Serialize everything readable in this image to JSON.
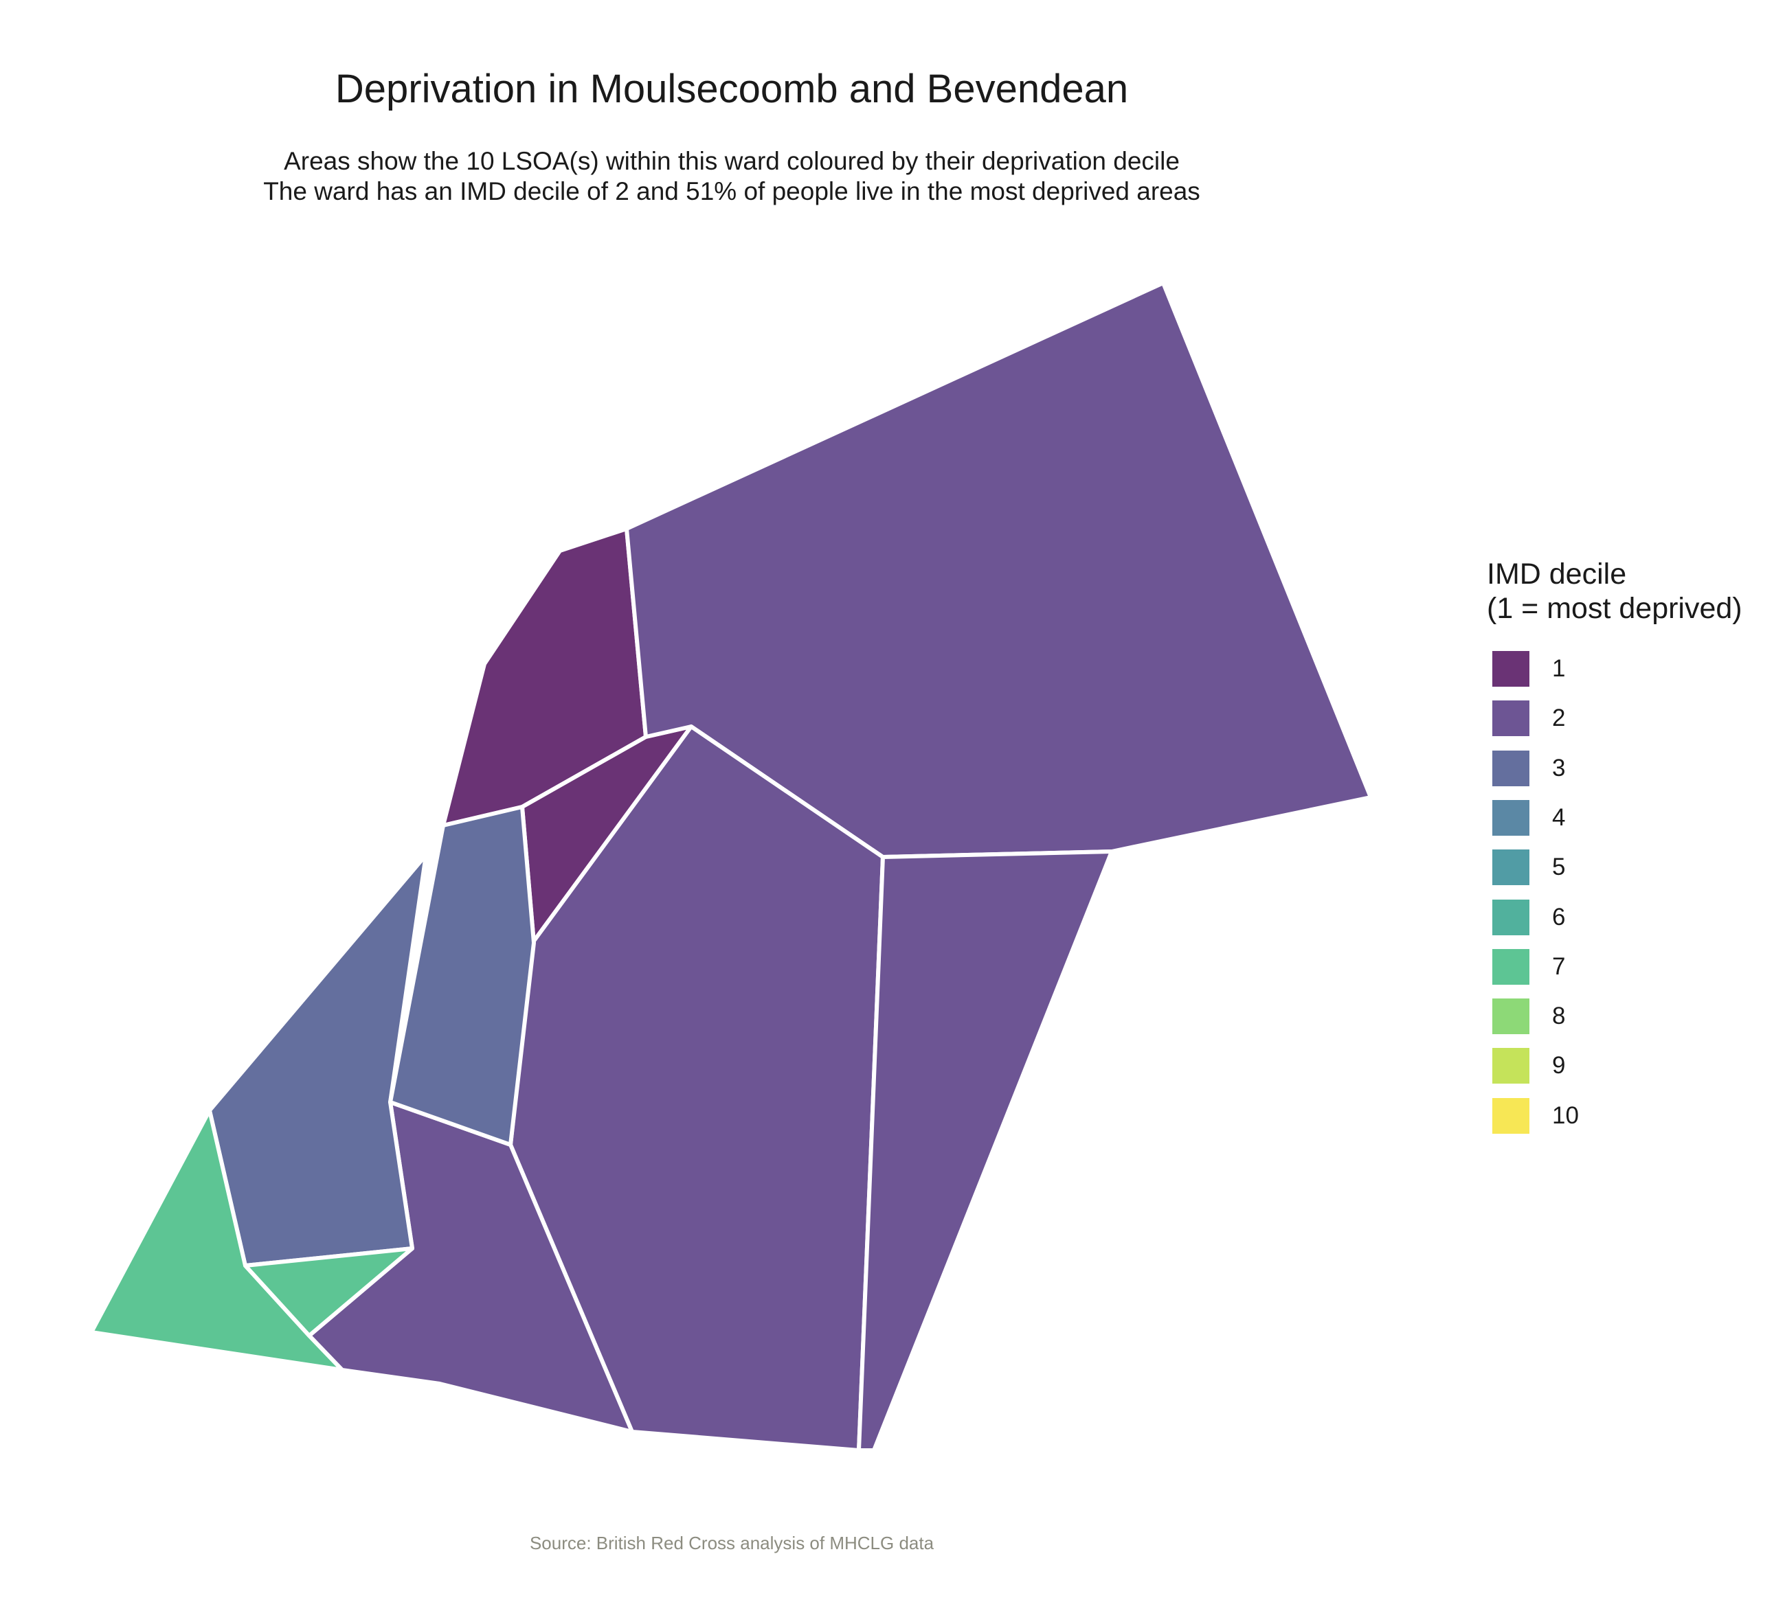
{
  "title": "Deprivation in Moulsecoomb and Bevendean",
  "subtitle_line1": "Areas show the 10 LSOA(s) within this ward coloured by their deprivation decile",
  "subtitle_line2": "The ward has an IMD decile of 2 and 51% of people live in the most deprived areas",
  "caption": "Source: British Red Cross analysis of MHCLG data",
  "legend": {
    "title_line1": "IMD decile",
    "title_line2": "(1 = most deprived)",
    "items": [
      {
        "label": "1",
        "color": "#6a3375"
      },
      {
        "label": "2",
        "color": "#6d5594"
      },
      {
        "label": "3",
        "color": "#646f9e"
      },
      {
        "label": "4",
        "color": "#5b88a5"
      },
      {
        "label": "5",
        "color": "#519ca5"
      },
      {
        "label": "6",
        "color": "#51b19d"
      },
      {
        "label": "7",
        "color": "#5dc594"
      },
      {
        "label": "8",
        "color": "#8dd977"
      },
      {
        "label": "9",
        "color": "#c5e35a"
      },
      {
        "label": "10",
        "color": "#f7e755"
      }
    ]
  },
  "map_data": {
    "areas": [
      {
        "decile": 1
      },
      {
        "decile": 1
      },
      {
        "decile": 2
      },
      {
        "decile": 2
      },
      {
        "decile": 2
      },
      {
        "decile": 2
      },
      {
        "decile": 3
      },
      {
        "decile": 3
      },
      {
        "decile": 7
      },
      {
        "decile": 7
      }
    ]
  }
}
